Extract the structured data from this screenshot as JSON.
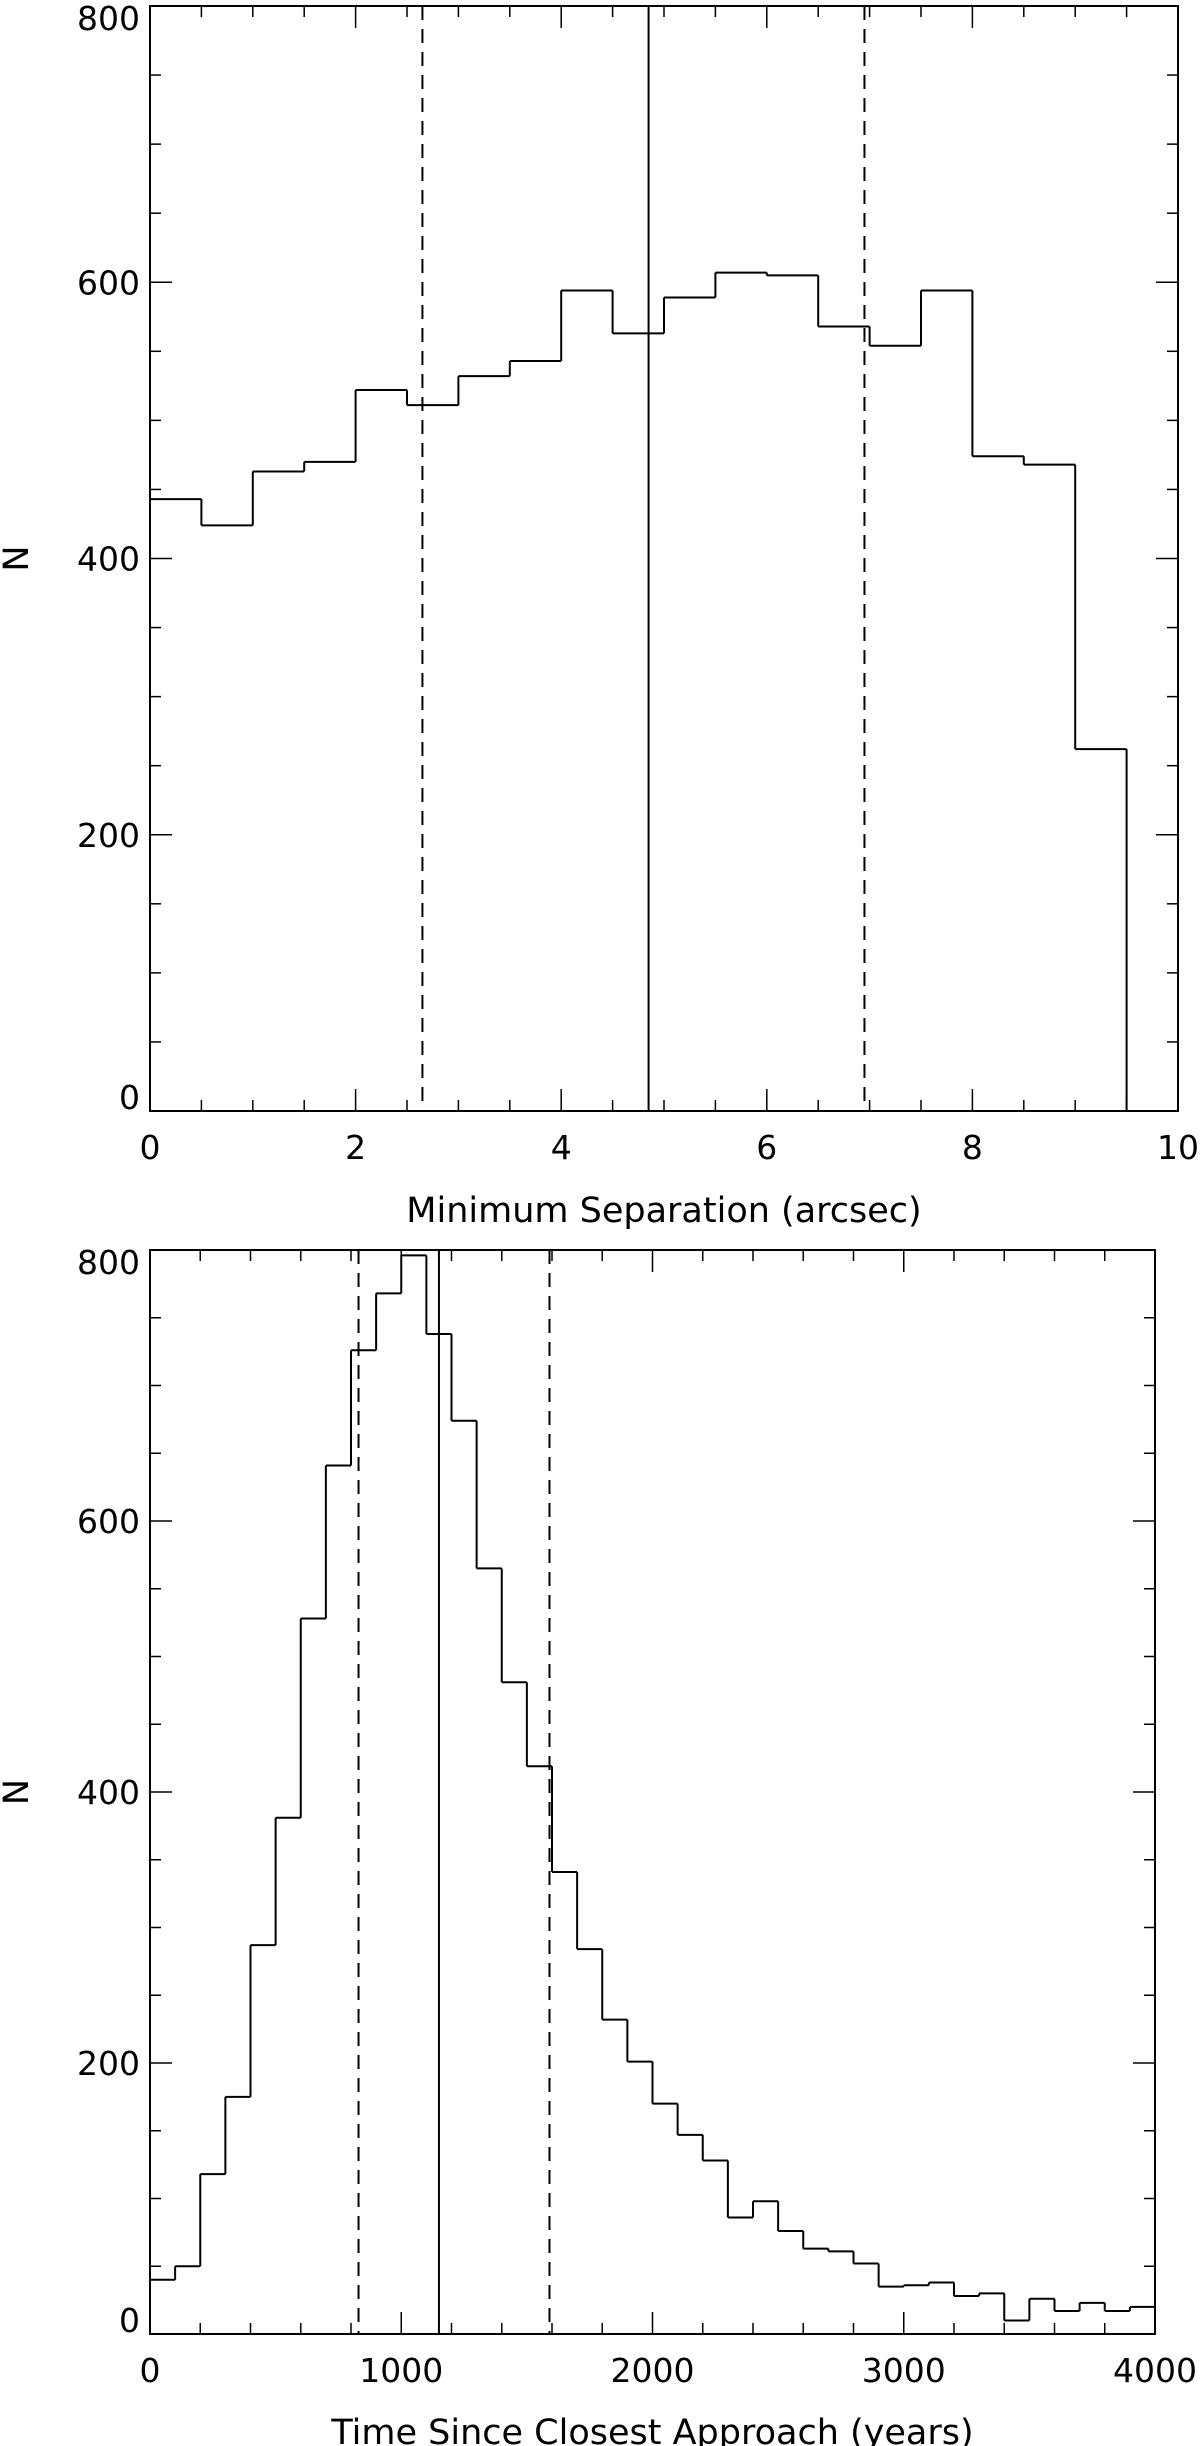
{
  "chart_data": [
    {
      "type": "histogram",
      "xlabel": "Minimum Separation (arcsec)",
      "ylabel": "N",
      "xlim": [
        0,
        10
      ],
      "ylim": [
        0,
        800
      ],
      "x_ticks": [
        0,
        2,
        4,
        6,
        8,
        10
      ],
      "y_ticks": [
        0,
        200,
        400,
        600,
        800
      ],
      "bin_edges": [
        0,
        0.5,
        1.0,
        1.5,
        2.0,
        2.5,
        3.0,
        3.5,
        4.0,
        4.5,
        5.0,
        5.5,
        6.0,
        6.5,
        7.0,
        7.5,
        8.0,
        8.5,
        9.0,
        9.5
      ],
      "values": [
        443,
        424,
        463,
        470,
        522,
        511,
        532,
        543,
        594,
        563,
        589,
        607,
        605,
        568,
        554,
        594,
        474,
        468,
        262
      ],
      "vlines": [
        {
          "x": 4.85,
          "style": "solid"
        },
        {
          "x": 2.65,
          "style": "dashed"
        },
        {
          "x": 6.95,
          "style": "dashed"
        }
      ]
    },
    {
      "type": "histogram",
      "xlabel": "Time Since Closest Approach (years)",
      "ylabel": "N",
      "xlim": [
        0,
        4000
      ],
      "ylim": [
        0,
        800
      ],
      "x_ticks": [
        0,
        1000,
        2000,
        3000,
        4000
      ],
      "y_ticks": [
        0,
        200,
        400,
        600,
        800
      ],
      "bin_edges": [
        0,
        100,
        200,
        300,
        400,
        500,
        600,
        700,
        800,
        900,
        1000,
        1100,
        1200,
        1300,
        1400,
        1500,
        1600,
        1700,
        1800,
        1900,
        2000,
        2100,
        2200,
        2300,
        2400,
        2500,
        2600,
        2700,
        2800,
        2900,
        3000,
        3100,
        3200,
        3300,
        3400,
        3500,
        3600,
        3700,
        3800,
        3900,
        4000
      ],
      "values": [
        40,
        50,
        118,
        175,
        287,
        381,
        528,
        641,
        726,
        768,
        796,
        738,
        674,
        565,
        481,
        419,
        341,
        284,
        232,
        201,
        170,
        147,
        128,
        86,
        98,
        76,
        63,
        61,
        52,
        35,
        36,
        38,
        28,
        30,
        10,
        26,
        17,
        23,
        17,
        20
      ],
      "vlines": [
        {
          "x": 1150,
          "style": "solid"
        },
        {
          "x": 830,
          "style": "dashed"
        },
        {
          "x": 1590,
          "style": "dashed"
        }
      ]
    }
  ]
}
